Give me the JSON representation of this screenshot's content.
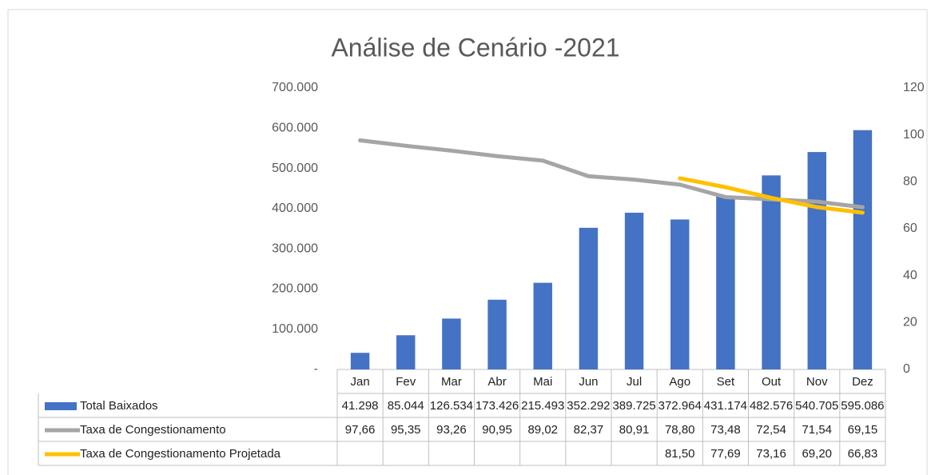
{
  "chart_data": {
    "type": "bar",
    "title": "Análise de Cenário -2021",
    "categories": [
      "Jan",
      "Fev",
      "Mar",
      "Abr",
      "Mai",
      "Jun",
      "Jul",
      "Ago",
      "Set",
      "Out",
      "Nov",
      "Dez"
    ],
    "series": [
      {
        "name": "Total Baixados",
        "type": "bar",
        "color": "#4472c4",
        "values": [
          41298,
          85044,
          126534,
          173426,
          215493,
          352292,
          389725,
          372964,
          431174,
          482576,
          540705,
          595086
        ],
        "value_labels": [
          "41.298",
          "85.044",
          "126.534",
          "173.426",
          "215.493",
          "352.292",
          "389.725",
          "372.964",
          "431.174",
          "482.576",
          "540.705",
          "595.086"
        ]
      },
      {
        "name": "Taxa de Congestionamento",
        "type": "line",
        "axis": "y2",
        "color": "#a5a5a5",
        "values": [
          97.66,
          95.35,
          93.26,
          90.95,
          89.02,
          82.37,
          80.91,
          78.8,
          73.48,
          72.54,
          71.54,
          69.15
        ],
        "value_labels": [
          "97,66",
          "95,35",
          "93,26",
          "90,95",
          "89,02",
          "82,37",
          "80,91",
          "78,80",
          "73,48",
          "72,54",
          "71,54",
          "69,15"
        ]
      },
      {
        "name": "Taxa de Congestionamento Projetada",
        "type": "line",
        "axis": "y2",
        "color": "#ffc000",
        "values": [
          null,
          null,
          null,
          null,
          null,
          null,
          null,
          81.5,
          77.69,
          73.16,
          69.2,
          66.83
        ],
        "value_labels": [
          null,
          null,
          null,
          null,
          null,
          null,
          null,
          "81,50",
          "77,69",
          "73,16",
          "69,20",
          "66,83"
        ]
      }
    ],
    "ylim": [
      0,
      700000
    ],
    "yticks": [
      {
        "value": 0,
        "label": "-"
      },
      {
        "value": 100000,
        "label": "100.000"
      },
      {
        "value": 200000,
        "label": "200.000"
      },
      {
        "value": 300000,
        "label": "300.000"
      },
      {
        "value": 400000,
        "label": "400.000"
      },
      {
        "value": 500000,
        "label": "500.000"
      },
      {
        "value": 600000,
        "label": "600.000"
      },
      {
        "value": 700000,
        "label": "700.000"
      }
    ],
    "y2lim": [
      0,
      120
    ],
    "y2ticks": [
      0,
      20,
      40,
      60,
      80,
      100,
      120
    ],
    "grid": false
  }
}
